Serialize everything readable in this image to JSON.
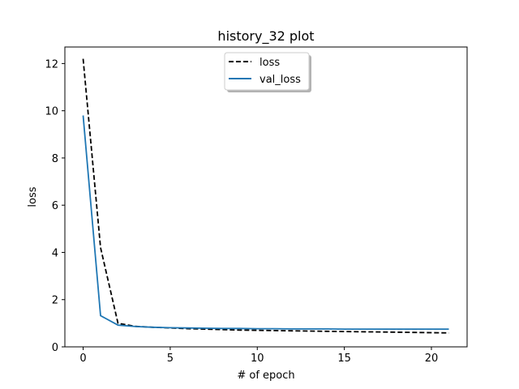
{
  "chart_data": {
    "type": "line",
    "title": "history_32 plot",
    "xlabel": "# of epoch",
    "ylabel": "loss",
    "xlim": [
      -1.05,
      22.05
    ],
    "ylim": [
      0,
      12.7
    ],
    "xticks": [
      0,
      5,
      10,
      15,
      20
    ],
    "yticks": [
      0,
      2,
      4,
      6,
      8,
      10,
      12
    ],
    "grid": false,
    "legend_position": "upper center",
    "x": [
      0,
      1,
      2,
      3,
      4,
      5,
      6,
      7,
      8,
      9,
      10,
      11,
      12,
      13,
      14,
      15,
      16,
      17,
      18,
      19,
      20,
      21
    ],
    "series": [
      {
        "name": "loss",
        "color": "#000000",
        "linestyle": "dashed",
        "values": [
          12.2,
          4.2,
          1.0,
          0.87,
          0.83,
          0.8,
          0.77,
          0.75,
          0.73,
          0.71,
          0.7,
          0.69,
          0.68,
          0.67,
          0.66,
          0.65,
          0.64,
          0.63,
          0.62,
          0.61,
          0.6,
          0.59
        ]
      },
      {
        "name": "val_loss",
        "color": "#1f77b4",
        "linestyle": "solid",
        "values": [
          9.8,
          1.32,
          0.92,
          0.86,
          0.83,
          0.81,
          0.8,
          0.79,
          0.78,
          0.78,
          0.77,
          0.77,
          0.76,
          0.76,
          0.76,
          0.75,
          0.75,
          0.75,
          0.75,
          0.75,
          0.75,
          0.75
        ]
      }
    ]
  }
}
